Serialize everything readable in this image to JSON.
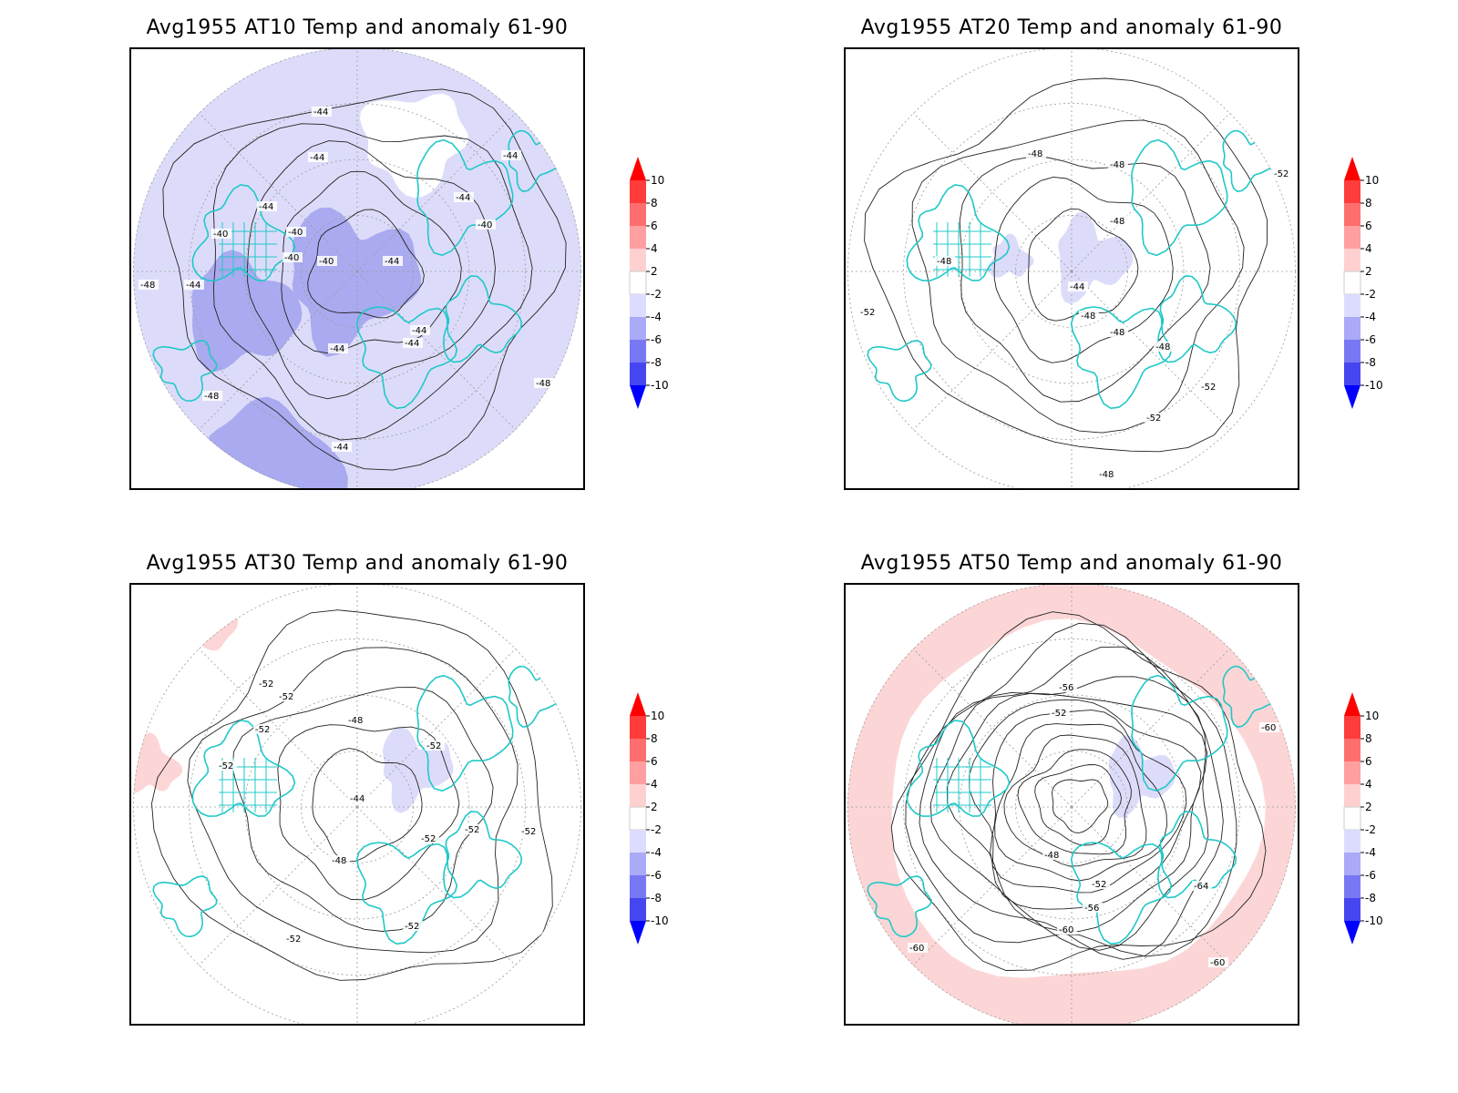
{
  "panels": [
    {
      "title": "Avg1955 AT10 Temp and anomaly 61-90",
      "anomaly_fill": "cool",
      "contour_labels": [
        "-44",
        "-44",
        "-44",
        "-40",
        "-40",
        "-40",
        "-40",
        "-44",
        "-44",
        "-48",
        "-44",
        "-40",
        "-44",
        "-44",
        "-44",
        "-48",
        "-48",
        "-44",
        "-44"
      ]
    },
    {
      "title": "Avg1955 AT20 Temp and anomaly 61-90",
      "anomaly_fill": "near-zero",
      "contour_labels": [
        "-48",
        "-48",
        "-48",
        "-52",
        "-48",
        "-44",
        "-48",
        "-48",
        "-48",
        "-52",
        "-52",
        "-52",
        "-48"
      ]
    },
    {
      "title": "Avg1955 AT30 Temp and anomaly 61-90",
      "anomaly_fill": "mixed",
      "contour_labels": [
        "-52",
        "-52",
        "-52",
        "-52",
        "-48",
        "-52",
        "-44",
        "-52",
        "-52",
        "-48",
        "-52",
        "-52",
        "-52"
      ]
    },
    {
      "title": "Avg1955 AT50 Temp and anomaly 61-90",
      "anomaly_fill": "warm-ring",
      "contour_labels": [
        "-56",
        "-52",
        "-48",
        "-52",
        "-56",
        "-60",
        "-64",
        "-60",
        "-60",
        "-60"
      ]
    }
  ],
  "colorbar": {
    "ticks": [
      "10",
      "8",
      "6",
      "4",
      "2",
      "-2",
      "-4",
      "-6",
      "-8",
      "-10"
    ],
    "colors": [
      "#ff0000",
      "#ff3c3c",
      "#ff6e6e",
      "#ff9f9f",
      "#ffd0d0",
      "#ffffff",
      "#dcdcfe",
      "#aaaaf8",
      "#7878f4",
      "#4646f0",
      "#0000ff"
    ]
  },
  "colors": {
    "coast": "#20c8c8",
    "contour": "#222222",
    "grid": "#9a9a9a",
    "cool_light": "#dcdcfa",
    "cool_mid": "#aaaaf0",
    "warm_light": "#fcd6d6"
  }
}
